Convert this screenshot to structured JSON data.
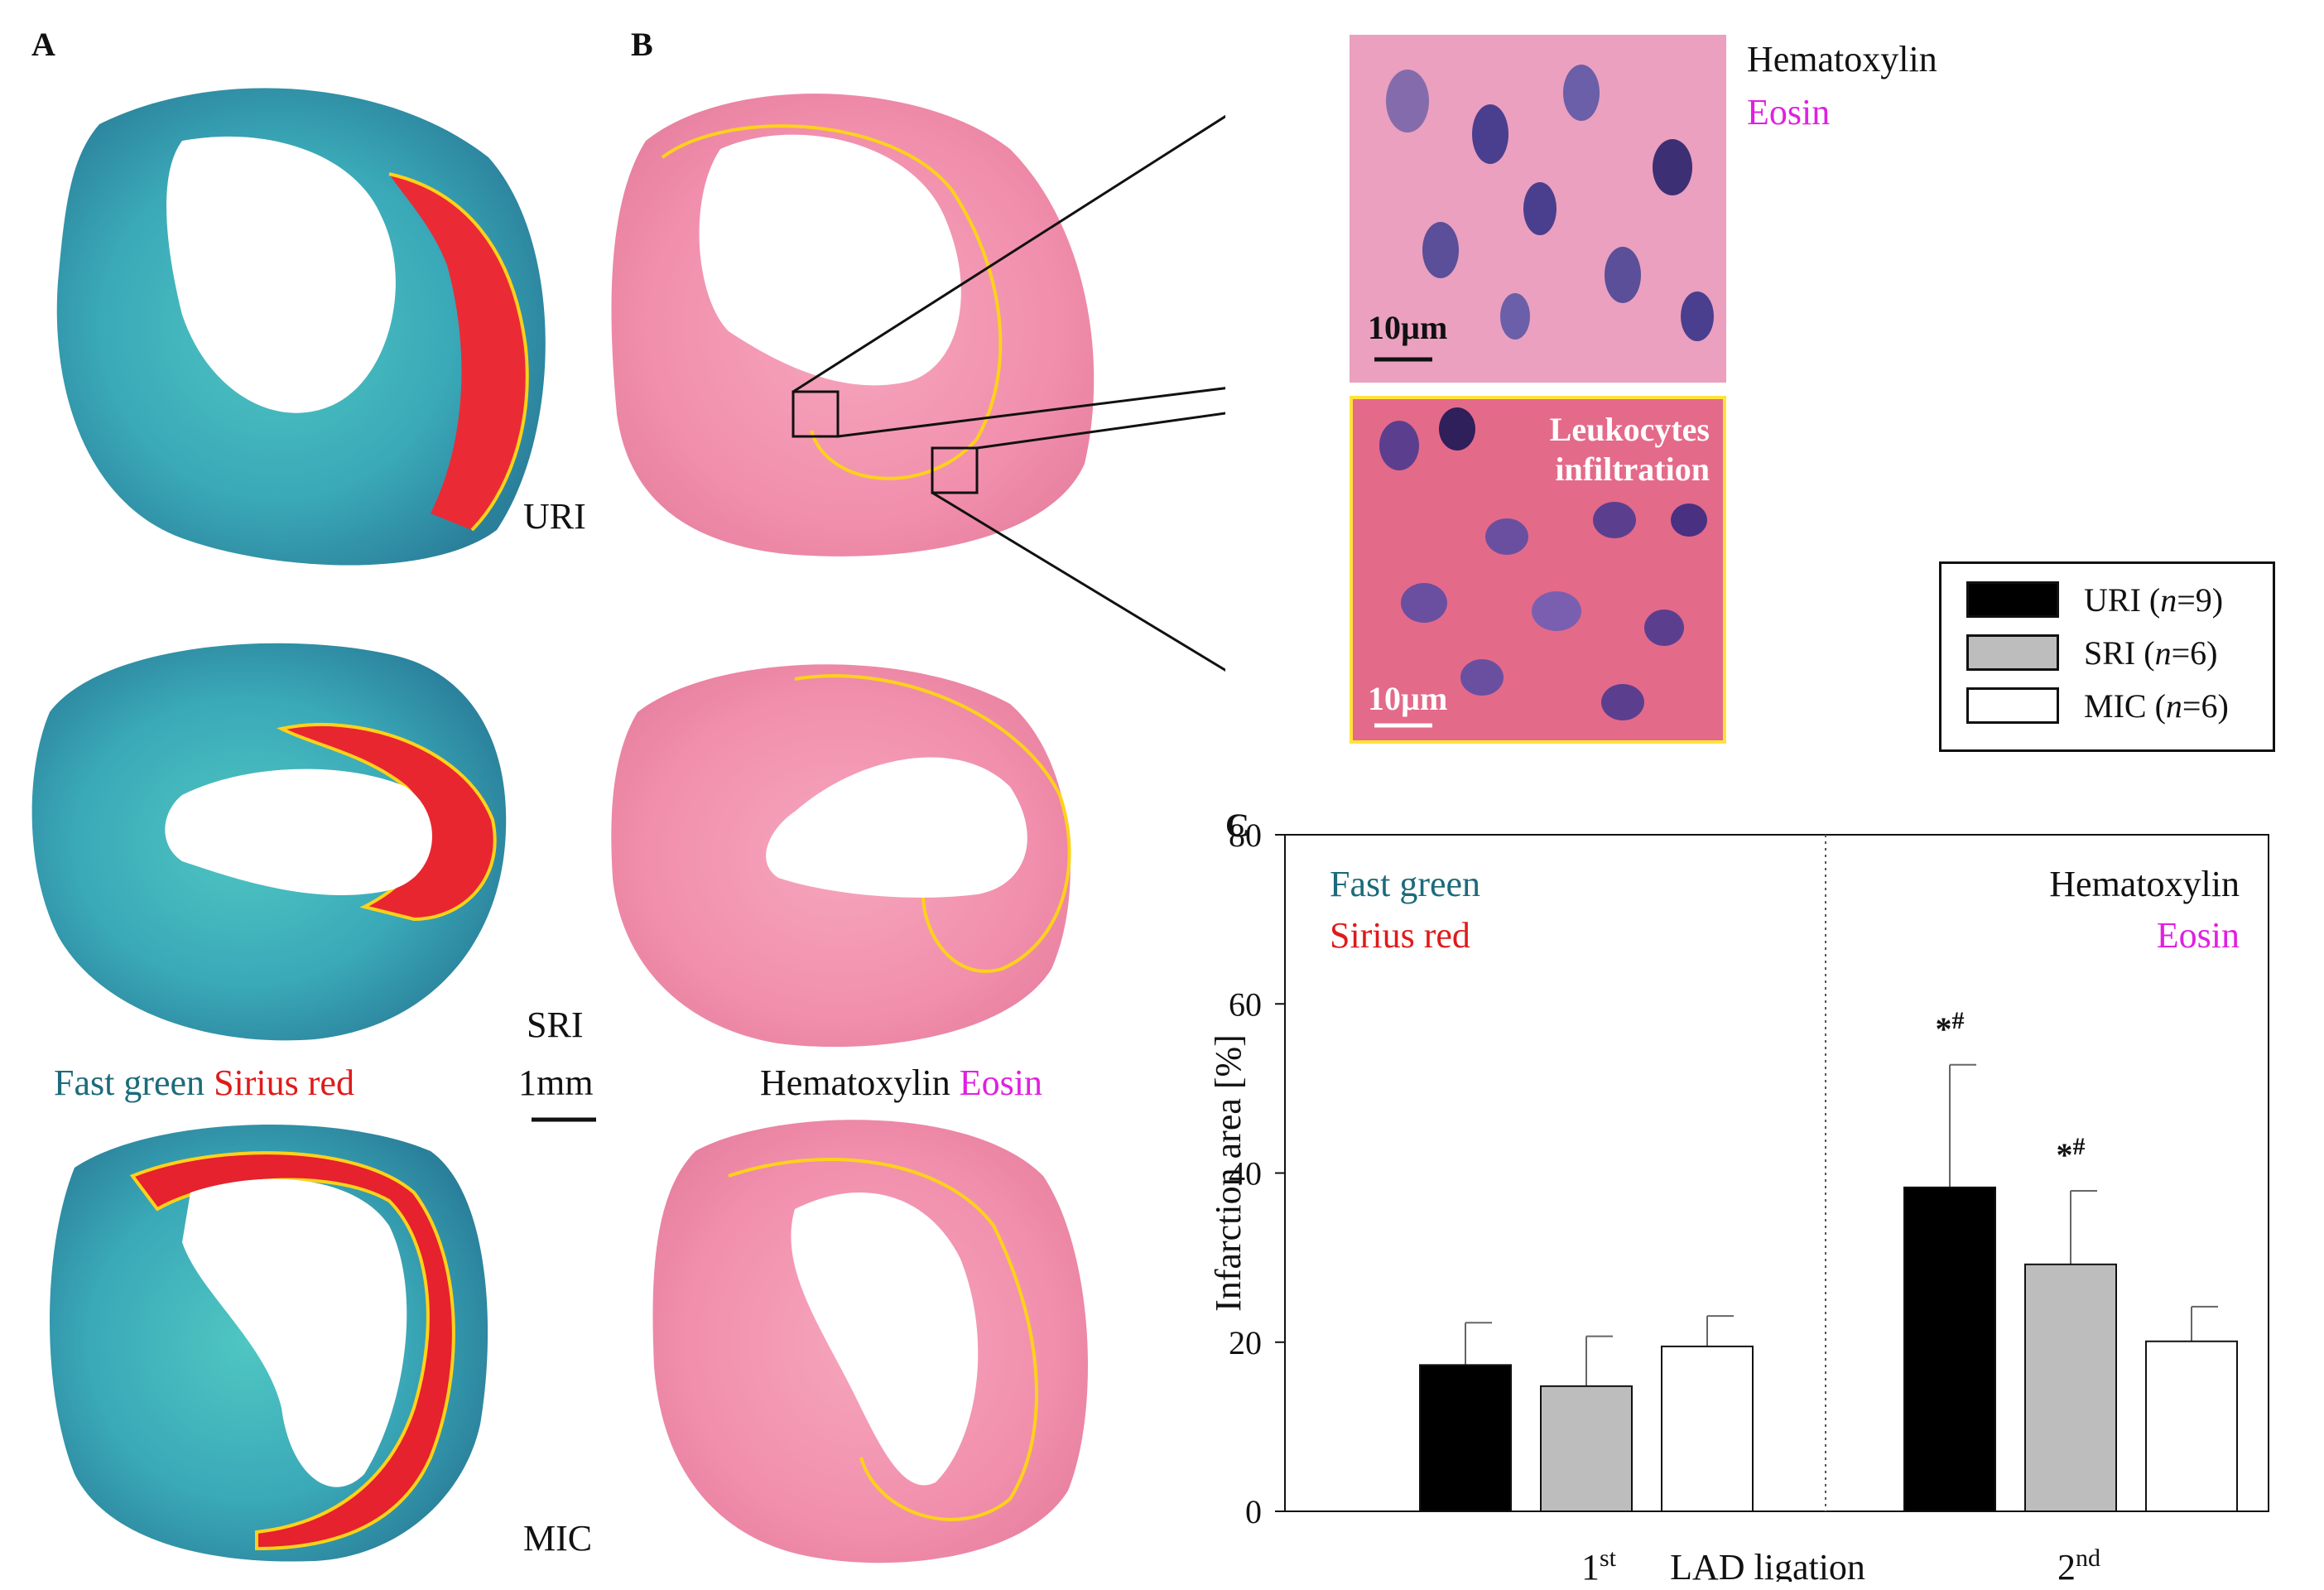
{
  "panel_a": {
    "letter": "A",
    "labels": {
      "uri": "URI",
      "sri": "SRI",
      "mic": "MIC"
    },
    "stain": {
      "part1": "Fast green",
      "part2": "Sirius red"
    },
    "scale_bar": "1mm"
  },
  "panel_b": {
    "letter": "B",
    "stain": {
      "part1": "Hematoxylin",
      "part2": "Eosin"
    }
  },
  "insets": {
    "stain_part1": "Hematoxylin",
    "stain_part2": "Eosin",
    "top_scale": "10µm",
    "bottom_scale": "10µm",
    "bottom_label_line1": "Leukocytes",
    "bottom_label_line2": "infiltration"
  },
  "legend": {
    "items": [
      {
        "group": "URI",
        "n_label": "n",
        "n_value": "=9)",
        "color": "#000000"
      },
      {
        "group": "SRI",
        "n_label": "n",
        "n_value": "=6)",
        "color": "#bdbdbd"
      },
      {
        "group": "MIC",
        "n_label": "n",
        "n_value": "=6)",
        "color": "#ffffff"
      }
    ]
  },
  "chart_data": {
    "type": "bar",
    "panel_letter": "C",
    "ylabel": "Infarction area [%]",
    "xlabel": "LAD ligation",
    "ylim": [
      0,
      80
    ],
    "yticks": [
      "0",
      "20",
      "40",
      "60",
      "80"
    ],
    "groups": [
      {
        "label": "1",
        "sup": "st"
      },
      {
        "label": "2",
        "sup": "nd"
      }
    ],
    "series": [
      {
        "name": "URI",
        "values": [
          17.3,
          38.3
        ],
        "errors": [
          5.0,
          14.5
        ],
        "color": "#000000"
      },
      {
        "name": "SRI",
        "values": [
          14.8,
          29.2
        ],
        "errors": [
          5.9,
          8.7
        ],
        "color": "#bdbdbd"
      },
      {
        "name": "MIC",
        "values": [
          19.5,
          20.1
        ],
        "errors": [
          3.6,
          4.1
        ],
        "color": "#ffffff"
      }
    ],
    "annotations": [
      {
        "text": "*#",
        "series": "URI",
        "group": 1
      },
      {
        "text": "*#",
        "series": "SRI",
        "group": 1
      }
    ],
    "stain_left": {
      "part1": "Fast green",
      "part2": "Sirius red"
    },
    "stain_right": {
      "part1": "Hematoxylin",
      "part2": "Eosin"
    }
  }
}
